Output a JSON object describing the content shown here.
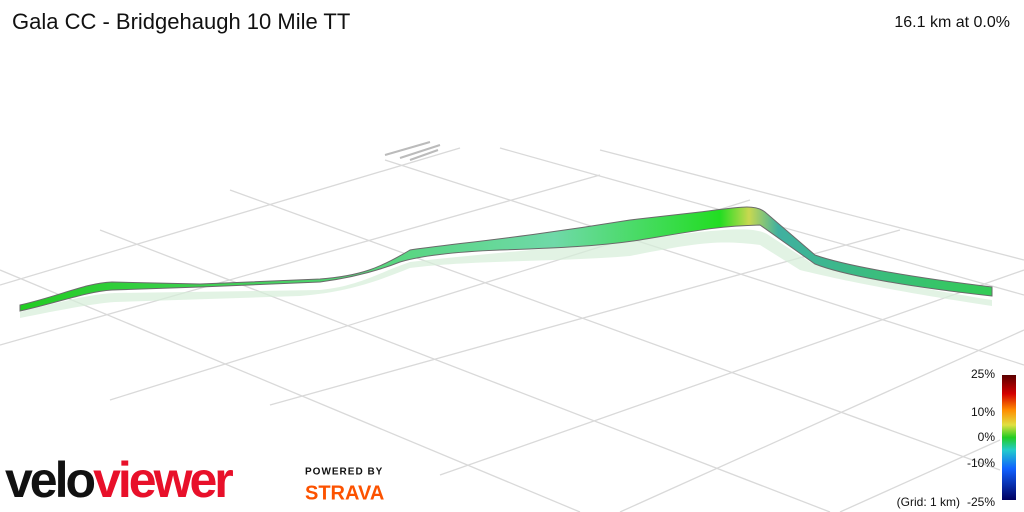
{
  "header": {
    "title": "Gala CC - Bridgehaugh 10 Mile TT",
    "stats": "16.1 km at 0.0%"
  },
  "legend": {
    "labels": [
      "25%",
      "10%",
      "0%",
      "-10%",
      "-25%"
    ],
    "grid_note": "(Grid: 1 km)"
  },
  "branding": {
    "logo": "veloviewer",
    "powered_by": "POWERED BY",
    "partner": "STRAVA"
  }
}
